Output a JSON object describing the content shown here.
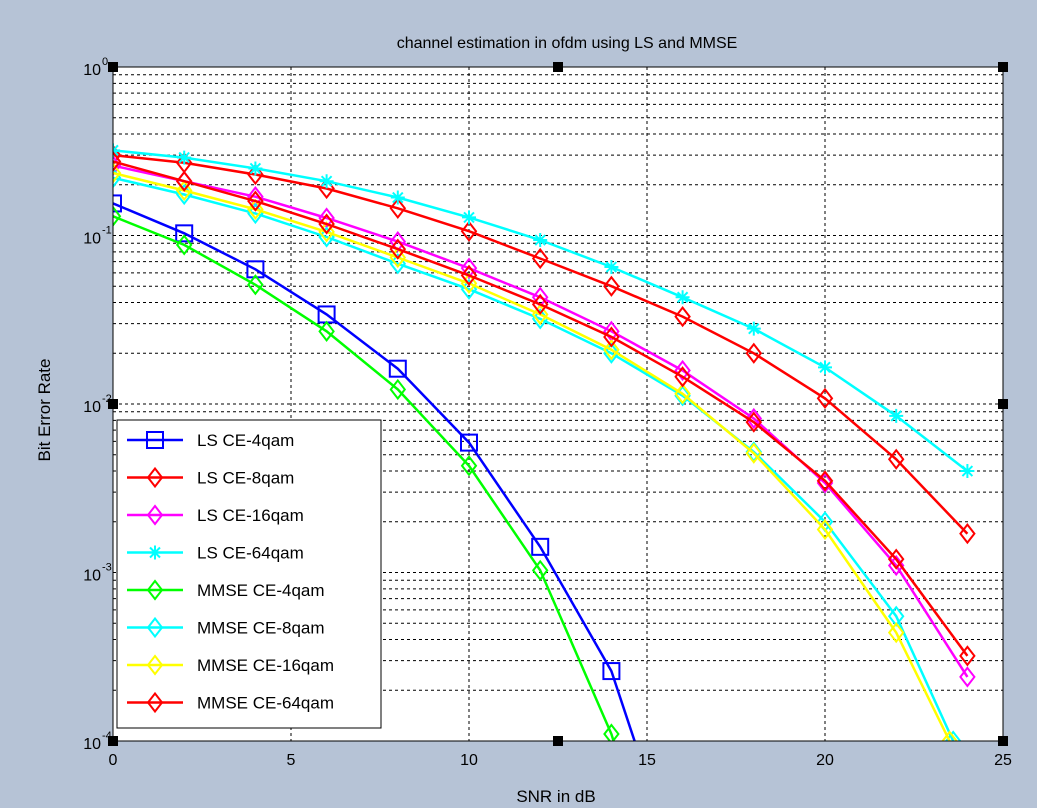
{
  "figure": {
    "background": "#b6c3d6"
  },
  "chart_data": {
    "type": "line",
    "title": "channel estimation in ofdm using LS and MMSE",
    "xlabel": "SNR in dB",
    "ylabel": "Bit Error Rate",
    "xlim": [
      0,
      25
    ],
    "ylim": [
      0.0001,
      1
    ],
    "yscale": "log",
    "grid": true,
    "legend_location": "lower-left",
    "x_ticks": [
      {
        "value": 0,
        "label": "0"
      },
      {
        "value": 5,
        "label": "5"
      },
      {
        "value": 10,
        "label": "10"
      },
      {
        "value": 15,
        "label": "15"
      },
      {
        "value": 20,
        "label": "20"
      },
      {
        "value": 25,
        "label": "25"
      }
    ],
    "y_ticks": [
      {
        "value": 1,
        "base": "10",
        "exp": "0"
      },
      {
        "value": 0.1,
        "base": "10",
        "exp": "-1"
      },
      {
        "value": 0.01,
        "base": "10",
        "exp": "-2"
      },
      {
        "value": 0.001,
        "base": "10",
        "exp": "-3"
      },
      {
        "value": 0.0001,
        "base": "10",
        "exp": "-4"
      }
    ],
    "series": [
      {
        "name": "LS CE-4qam",
        "color": "#0000ff",
        "marker": "square",
        "x": [
          0,
          2,
          4,
          6,
          8,
          10,
          12,
          14,
          15
        ],
        "y": [
          0.155,
          0.103,
          0.063,
          0.034,
          0.0162,
          0.0059,
          0.00142,
          0.00026,
          6e-05
        ]
      },
      {
        "name": "LS CE-8qam",
        "color": "#ff0000",
        "marker": "diamond",
        "x": [
          0,
          2,
          4,
          6,
          8,
          10,
          12,
          14,
          16,
          18,
          20,
          22,
          24
        ],
        "y": [
          0.3,
          0.27,
          0.23,
          0.19,
          0.145,
          0.106,
          0.073,
          0.05,
          0.033,
          0.02,
          0.0108,
          0.0047,
          0.0017
        ]
      },
      {
        "name": "LS CE-16qam",
        "color": "#ff00ff",
        "marker": "diamond",
        "x": [
          0,
          2,
          4,
          6,
          8,
          10,
          12,
          14,
          16,
          18,
          20,
          22,
          24
        ],
        "y": [
          0.26,
          0.21,
          0.17,
          0.127,
          0.092,
          0.064,
          0.043,
          0.027,
          0.0158,
          0.0082,
          0.0034,
          0.0011,
          0.00024
        ]
      },
      {
        "name": "LS CE-64qam",
        "color": "#00ffff",
        "marker": "star",
        "x": [
          0,
          2,
          4,
          6,
          8,
          10,
          12,
          14,
          16,
          18,
          20,
          22,
          24
        ],
        "y": [
          0.32,
          0.29,
          0.25,
          0.21,
          0.168,
          0.128,
          0.094,
          0.065,
          0.043,
          0.028,
          0.0165,
          0.0085,
          0.004
        ]
      },
      {
        "name": "MMSE CE-4qam",
        "color": "#00ff00",
        "marker": "diamond",
        "x": [
          0,
          2,
          4,
          6,
          8,
          10,
          12,
          14,
          14.5
        ],
        "y": [
          0.13,
          0.088,
          0.051,
          0.027,
          0.0122,
          0.0043,
          0.00103,
          0.00011,
          5e-05
        ]
      },
      {
        "name": "MMSE CE-8qam",
        "color": "#00ffff",
        "marker": "diamond",
        "x": [
          0,
          2,
          4,
          6,
          8,
          10,
          12,
          14,
          16,
          18,
          20,
          22,
          23.6
        ],
        "y": [
          0.22,
          0.175,
          0.135,
          0.098,
          0.068,
          0.048,
          0.032,
          0.02,
          0.0112,
          0.0052,
          0.002,
          0.00055,
          0.0001
        ]
      },
      {
        "name": "MMSE CE-16qam",
        "color": "#ffff00",
        "marker": "diamond",
        "x": [
          0,
          2,
          4,
          6,
          8,
          10,
          12,
          14,
          16,
          18,
          20,
          22,
          23.5
        ],
        "y": [
          0.235,
          0.185,
          0.143,
          0.105,
          0.074,
          0.052,
          0.034,
          0.021,
          0.0115,
          0.0051,
          0.0018,
          0.00044,
          0.0001
        ]
      },
      {
        "name": "MMSE CE-64qam",
        "color": "#ff0000",
        "marker": "diamond",
        "x": [
          0,
          2,
          4,
          6,
          8,
          10,
          12,
          14,
          16,
          18,
          20,
          22,
          24
        ],
        "y": [
          0.275,
          0.21,
          0.16,
          0.117,
          0.083,
          0.058,
          0.039,
          0.025,
          0.0145,
          0.0078,
          0.0035,
          0.0012,
          0.00032
        ]
      }
    ]
  }
}
